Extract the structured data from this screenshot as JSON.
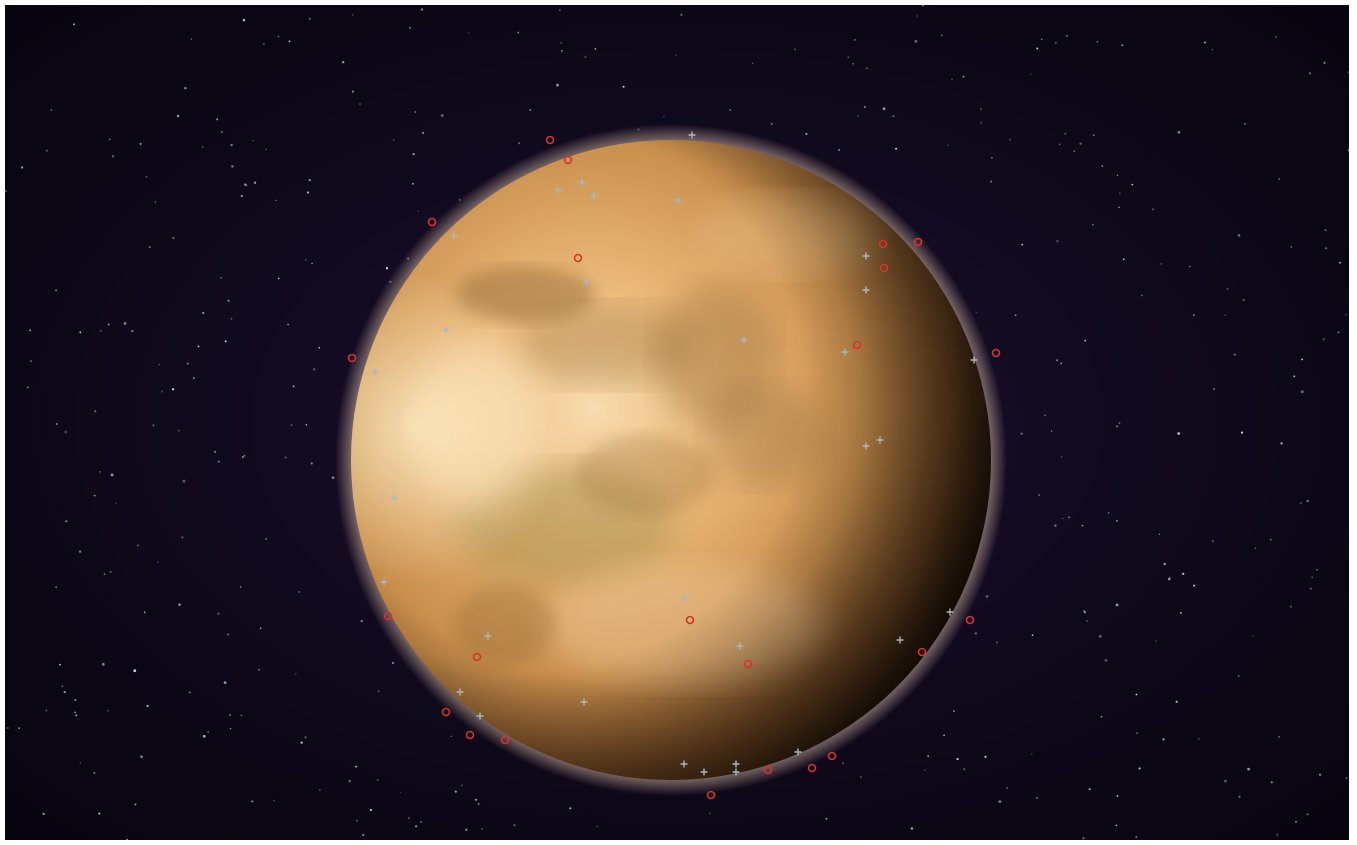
{
  "scene": {
    "background_color": "#0d0818",
    "planet_colors": {
      "highlight": "#f8dcae",
      "light": "#e9b677",
      "mid": "#c88e4c",
      "dark": "#6b4320",
      "terminator": "#1a1008",
      "atmosphere": "#f4d2b6",
      "cloud_band": "#8a6433",
      "green_tint": "#8a8442"
    },
    "marker_colors": {
      "red_circle": "#d8322c",
      "cross": "#a9b8c4"
    }
  }
}
